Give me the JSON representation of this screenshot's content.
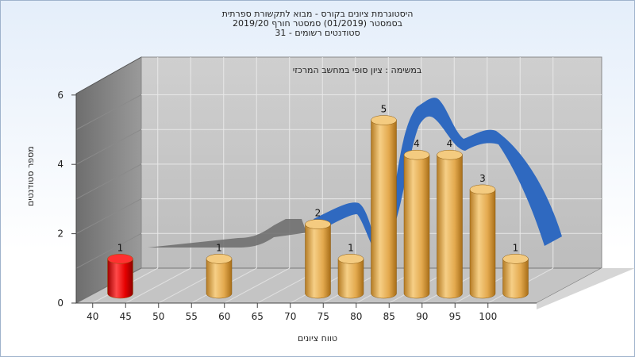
{
  "chart_data": {
    "type": "bar",
    "title_lines": [
      "היסטוגרמת ציונים בקורס - מבוא לתקשורת ספרתית",
      "בסמסטר  (01/2019)  סמסטר חורף 2019/20",
      "סטודנטים רשומים - 31"
    ],
    "subtitle": "במשימה : ציון סופי במחשב המרכזי",
    "xlabel": "טווח ציונים",
    "ylabel": "מספר סטודנטים",
    "x_ticks": [
      "40",
      "45",
      "50",
      "55",
      "60",
      "65",
      "70",
      "75",
      "80",
      "85",
      "90",
      "95",
      "100"
    ],
    "y_ticks": [
      "0",
      "2",
      "4",
      "6"
    ],
    "ylim": [
      0,
      6
    ],
    "bars": [
      {
        "x": 42.5,
        "value": 1,
        "label": "1",
        "color": "#dd0000"
      },
      {
        "x": 57.5,
        "value": 1,
        "label": "1",
        "color": "#e3a94e"
      },
      {
        "x": 72.5,
        "value": 2,
        "label": "2",
        "color": "#e3a94e"
      },
      {
        "x": 77.5,
        "value": 1,
        "label": "1",
        "color": "#e3a94e"
      },
      {
        "x": 82.5,
        "value": 5,
        "label": "5",
        "color": "#e3a94e"
      },
      {
        "x": 87.5,
        "value": 4,
        "label": "4",
        "color": "#e3a94e"
      },
      {
        "x": 92.5,
        "value": 4,
        "label": "4",
        "color": "#e3a94e"
      },
      {
        "x": 97.5,
        "value": 3,
        "label": "3",
        "color": "#e3a94e"
      },
      {
        "x": 102.5,
        "value": 1,
        "label": "1",
        "color": "#e3a94e"
      }
    ],
    "ribbon_color": "#2f69c0",
    "ribbon_shadow_color": "#6b6b6b"
  }
}
